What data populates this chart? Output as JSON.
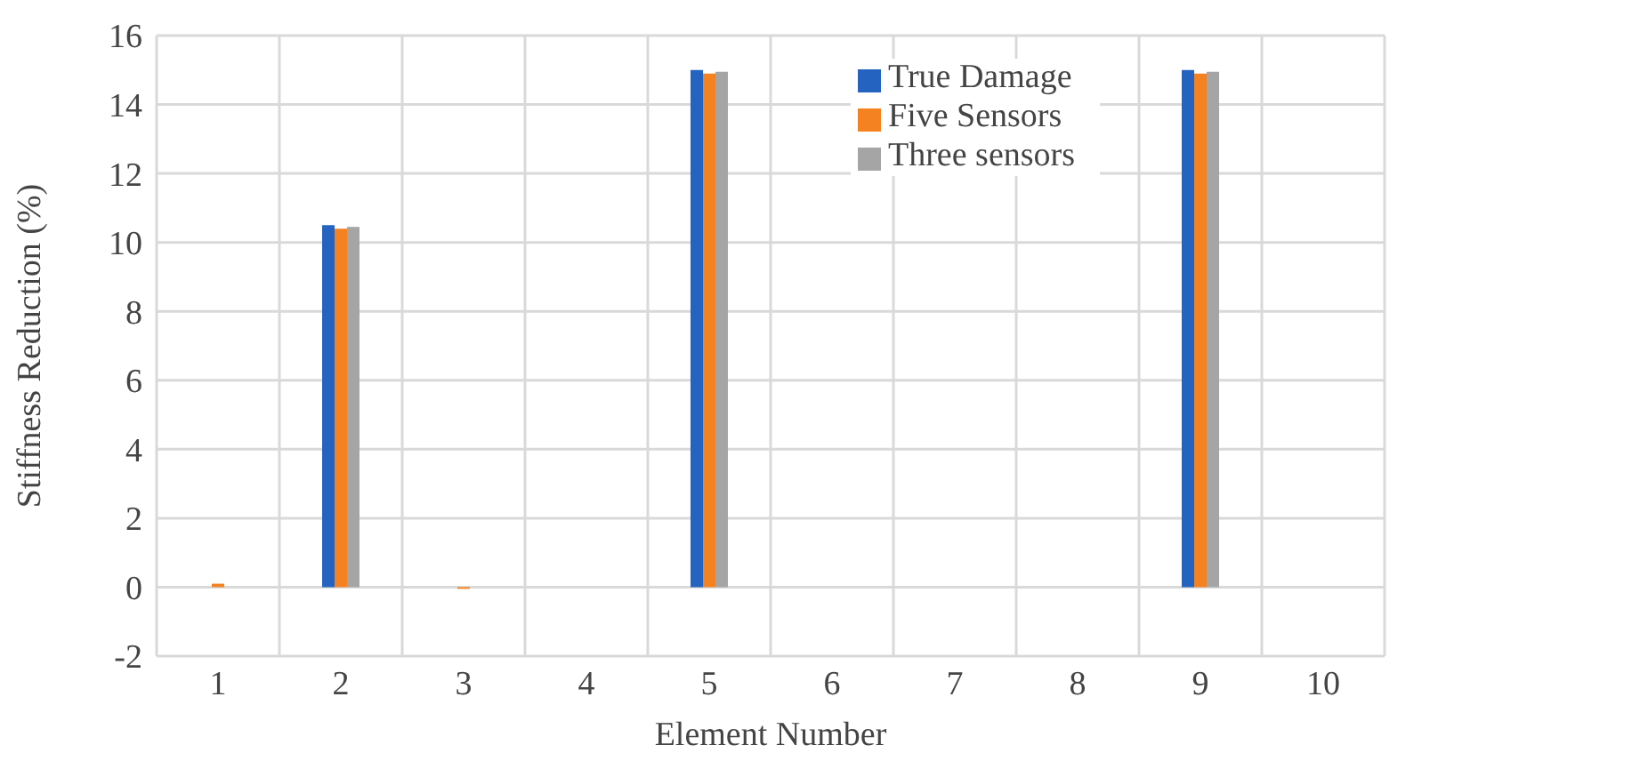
{
  "chart_data": {
    "type": "bar",
    "xlabel": "Element Number",
    "ylabel": "Stiffness Reduction (%)",
    "categories": [
      "1",
      "2",
      "3",
      "4",
      "5",
      "6",
      "7",
      "8",
      "9",
      "10"
    ],
    "series": [
      {
        "name": "True Damage",
        "color": "#2563c0",
        "values": [
          0,
          10.5,
          0,
          0,
          15,
          0,
          0,
          0,
          15,
          0
        ]
      },
      {
        "name": "Five Sensors",
        "color": "#f58220",
        "values": [
          0.1,
          10.4,
          -0.05,
          0,
          14.9,
          0,
          0,
          0,
          14.9,
          0
        ]
      },
      {
        "name": "Three sensors",
        "color": "#a5a5a5",
        "values": [
          0,
          10.45,
          0,
          0,
          14.95,
          0,
          0,
          0,
          14.95,
          0
        ]
      }
    ],
    "ylim": [
      -2,
      16
    ],
    "yticks": [
      -2,
      0,
      2,
      4,
      6,
      8,
      10,
      12,
      14,
      16
    ],
    "grid": true,
    "legend": "top right"
  }
}
